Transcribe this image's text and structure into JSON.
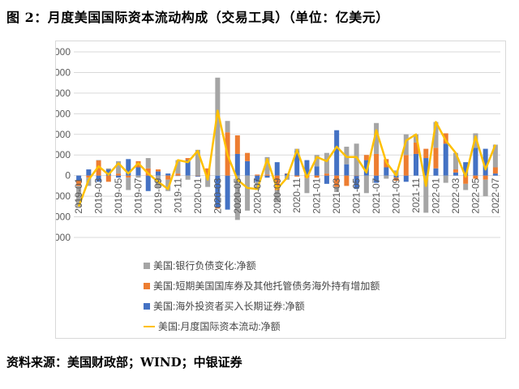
{
  "title": "图 2：月度美国国际资本流动构成（交易工具）（单位：亿美元）",
  "source": "资料来源：美国财政部；WIND；中银证券",
  "chart_data": {
    "type": "bar",
    "title": "月度美国国际资本流动构成（交易工具）（单位：亿美元）",
    "ylim": [
      -3000,
      6000
    ],
    "yticks": [
      -3000,
      -2000,
      -1000,
      0,
      1000,
      2000,
      3000,
      4000,
      5000,
      6000
    ],
    "grid": true,
    "legend_placement": "bottom",
    "categories": [
      "2019-01",
      "2019-02",
      "2019-03",
      "2019-04",
      "2019-05",
      "2019-06",
      "2019-07",
      "2019-08",
      "2019-09",
      "2019-10",
      "2019-11",
      "2019-12",
      "2020-01",
      "2020-02",
      "2020-03",
      "2020-04",
      "2020-05",
      "2020-06",
      "2020-07",
      "2020-08",
      "2020-09",
      "2020-10",
      "2020-11",
      "2020-12",
      "2021-01",
      "2021-02",
      "2021-03",
      "2021-04",
      "2021-05",
      "2021-06",
      "2021-07",
      "2021-08",
      "2021-09",
      "2021-10",
      "2021-11",
      "2021-12",
      "2022-01",
      "2022-02",
      "2022-03",
      "2022-04",
      "2022-05",
      "2022-06",
      "2022-07"
    ],
    "series": [
      {
        "name": "美国:银行负债变化:净额",
        "type": "bar",
        "color": "#a5a5a5",
        "values": [
          -1000,
          -400,
          0,
          50,
          600,
          -600,
          -100,
          500,
          -600,
          -550,
          650,
          -200,
          1250,
          -550,
          4750,
          550,
          -2150,
          -1700,
          -400,
          850,
          -600,
          -200,
          100,
          -750,
          550,
          1000,
          -250,
          850,
          1550,
          -850,
          1500,
          -150,
          250,
          1000,
          400,
          -1800,
          1250,
          -350,
          800,
          -300,
          700,
          -800,
          1100
        ]
      },
      {
        "name": "美国:短期美国国库券及其他托管债务海外持有增加额",
        "type": "bar",
        "color": "#ed7d31",
        "values": [
          -250,
          -100,
          750,
          -300,
          100,
          -100,
          300,
          350,
          100,
          -200,
          100,
          100,
          0,
          350,
          -50,
          2100,
          900,
          400,
          50,
          50,
          -700,
          0,
          -50,
          -100,
          -100,
          100,
          -550,
          -500,
          0,
          250,
          1050,
          400,
          -150,
          1000,
          550,
          450,
          1000,
          500,
          150,
          -400,
          -150,
          -200,
          300
        ]
      },
      {
        "name": "美国:海外投资者买入长期证券:净额",
        "type": "bar",
        "color": "#4472c4",
        "values": [
          -250,
          300,
          -300,
          300,
          -100,
          800,
          400,
          -750,
          200,
          100,
          0,
          750,
          -50,
          0,
          -1550,
          -1650,
          1050,
          700,
          -300,
          -100,
          650,
          100,
          1200,
          750,
          450,
          -400,
          2200,
          550,
          -650,
          750,
          -350,
          400,
          -100,
          -300,
          1050,
          850,
          350,
          1550,
          150,
          650,
          1350,
          1300,
          100
        ]
      },
      {
        "name": "美国:月度国际资本流动:净额",
        "type": "line",
        "color": "#ffc000",
        "values": [
          -1500,
          -200,
          450,
          50,
          600,
          100,
          600,
          100,
          -300,
          -650,
          750,
          650,
          1200,
          -200,
          3150,
          1000,
          -200,
          -600,
          -650,
          800,
          -650,
          -100,
          1250,
          -100,
          900,
          700,
          1400,
          900,
          900,
          150,
          2200,
          650,
          0,
          1700,
          2000,
          -500,
          2600,
          1700,
          1100,
          -50,
          1900,
          300,
          1500
        ]
      }
    ]
  }
}
